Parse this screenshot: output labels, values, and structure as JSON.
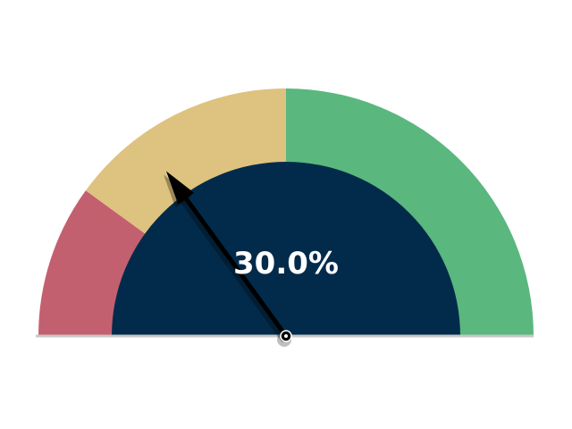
{
  "chart_data": {
    "type": "gauge",
    "value": 30.0,
    "value_label": "30.0%",
    "range": [
      0,
      100
    ],
    "bands": [
      {
        "from": 0,
        "to": 20,
        "color": "#c3606f"
      },
      {
        "from": 20,
        "to": 50,
        "color": "#dec27f"
      },
      {
        "from": 50,
        "to": 100,
        "color": "#5ab77e"
      }
    ],
    "inner_color": "#022b4b",
    "needle_color": "#000000"
  }
}
